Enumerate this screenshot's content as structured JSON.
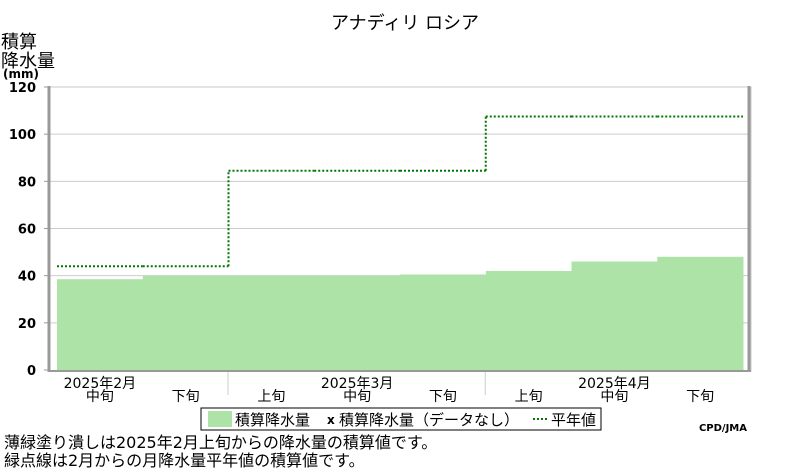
{
  "chart_data": {
    "type": "area",
    "title": "アナディリ ロシア",
    "ylabel_lines": [
      "積算",
      "降水量"
    ],
    "yunit": "(mm)",
    "ylim": [
      0,
      120
    ],
    "yticks": [
      0,
      20,
      40,
      60,
      80,
      100,
      120
    ],
    "grid": true,
    "periods": [
      "2025年2月中旬",
      "2025年2月下旬",
      "2025年3月上旬",
      "2025年3月中旬",
      "2025年3月下旬",
      "2025年4月上旬",
      "2025年4月中旬",
      "2025年4月下旬"
    ],
    "period_labels": [
      "中旬",
      "下旬",
      "上旬",
      "中旬",
      "下旬",
      "上旬",
      "中旬",
      "下旬"
    ],
    "month_labels": [
      {
        "label": "2025年2月",
        "period_index": 0
      },
      {
        "label": "2025年3月",
        "period_index": 3
      },
      {
        "label": "2025年4月",
        "period_index": 6
      }
    ],
    "series": [
      {
        "name": "積算降水量",
        "kind": "area",
        "color": "#aee3a8",
        "values": [
          38.5,
          40,
          40,
          40,
          40.5,
          42,
          46,
          48
        ]
      },
      {
        "name": "平年値",
        "kind": "dotted-step",
        "color": "#007700",
        "values": [
          44,
          44,
          84.5,
          84.5,
          84.5,
          107.5,
          107.5,
          107.5
        ]
      }
    ],
    "legend": {
      "placement": "bottom",
      "items": [
        {
          "label": "積算降水量",
          "marker": "swatch",
          "color": "#aee3a8"
        },
        {
          "label": "積算降水量（データなし）",
          "marker": "x"
        },
        {
          "label": "平年値",
          "marker": "dotted-line",
          "color": "#007700"
        }
      ]
    },
    "credit": "CPD/JMA"
  },
  "notes": [
    "薄緑塗り潰しは2025年2月上旬からの降水量の積算値です。",
    "緑点線は2月からの月降水量平年値の積算値です。"
  ]
}
